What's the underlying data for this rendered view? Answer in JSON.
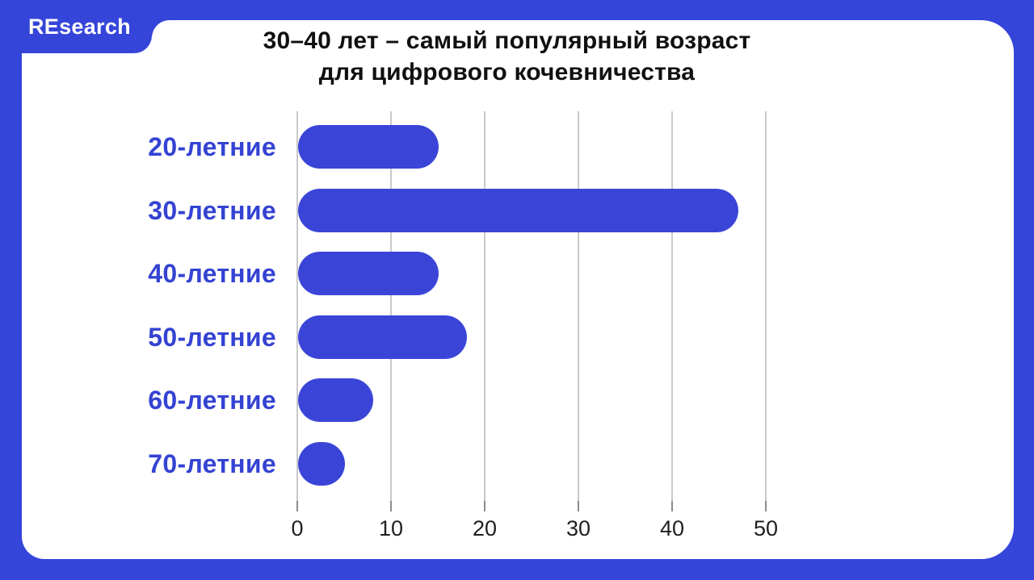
{
  "brand": {
    "logo_text": "REsearch"
  },
  "title": {
    "line1": "30–40 лет – самый популярный возраст",
    "line2": "для цифрового кочевничества"
  },
  "colors": {
    "frame_blue": "#3545DA",
    "bar_blue": "#3A45D8",
    "label_blue": "#3443D2",
    "gridline": "#C9C9C9",
    "tick": "#8C8C8C",
    "axis_text": "#1F1F1F",
    "title_text": "#101010",
    "panel_bg": "#FFFFFF"
  },
  "chart_data": {
    "type": "bar",
    "orientation": "horizontal",
    "title": "30–40 лет – самый популярный возраст для цифрового кочевничества",
    "categories": [
      "20-летние",
      "30-летние",
      "40-летние",
      "50-летние",
      "60-летние",
      "70-летние"
    ],
    "values": [
      15,
      47,
      15,
      18,
      8,
      5
    ],
    "x_ticks": [
      0,
      10,
      20,
      30,
      40,
      50
    ],
    "xlim": [
      0,
      55
    ],
    "xlabel": "",
    "ylabel": "",
    "grid": "vertical",
    "legend": "none"
  }
}
